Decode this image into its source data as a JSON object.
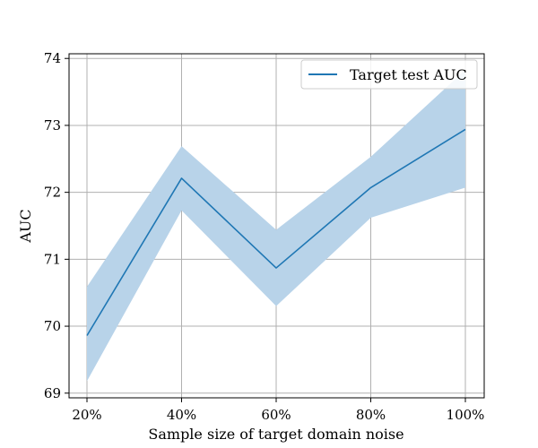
{
  "chart_data": {
    "type": "line",
    "title": "",
    "xlabel": "Sample size of target domain noise",
    "ylabel": "AUC",
    "categories": [
      "20%",
      "40%",
      "60%",
      "80%",
      "100%"
    ],
    "ylim": [
      68.93,
      74.07
    ],
    "yticks": [
      69,
      70,
      71,
      72,
      73,
      74
    ],
    "grid": true,
    "legend_position": "top-right",
    "series": [
      {
        "name": "Target test AUC",
        "values": [
          69.86,
          72.21,
          70.87,
          72.07,
          72.94
        ],
        "band_lower": [
          69.18,
          71.73,
          70.3,
          71.62,
          72.07
        ],
        "band_upper": [
          70.59,
          72.69,
          71.44,
          72.53,
          73.83
        ],
        "color": "#1f77b4",
        "band_color": "#b8d3e9"
      }
    ]
  }
}
